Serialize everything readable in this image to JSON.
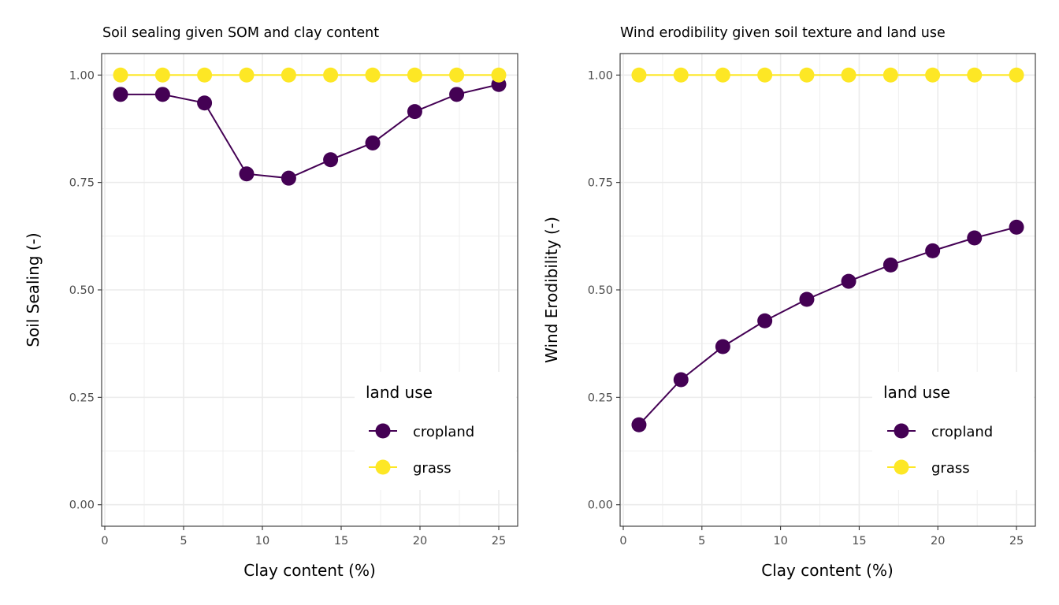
{
  "colors": {
    "cropland": "#440154",
    "grass": "#FDE725"
  },
  "chart_data": [
    {
      "type": "line",
      "title": "Soil sealing given SOM and clay content",
      "xlabel": "Clay content (%)",
      "ylabel": "Soil Sealing (-)",
      "xlim": [
        -0.2,
        26.2
      ],
      "ylim": [
        -0.05,
        1.05
      ],
      "xticks": [
        0,
        5,
        10,
        15,
        20,
        25
      ],
      "xtick_labels": [
        "0",
        "5",
        "10",
        "15",
        "20",
        "25"
      ],
      "yticks": [
        0,
        0.25,
        0.5,
        0.75,
        1.0
      ],
      "ytick_labels": [
        "0.00",
        "0.25",
        "0.50",
        "0.75",
        "1.00"
      ],
      "grid": true,
      "legend": {
        "title": "land use",
        "position": "bottom-right"
      },
      "x": [
        1,
        3.67,
        6.33,
        9,
        11.67,
        14.33,
        17,
        19.67,
        22.33,
        25
      ],
      "series": [
        {
          "name": "cropland",
          "color": "#440154",
          "values": [
            0.955,
            0.955,
            0.935,
            0.77,
            0.76,
            0.803,
            0.842,
            0.915,
            0.955,
            0.978
          ]
        },
        {
          "name": "grass",
          "color": "#FDE725",
          "values": [
            1,
            1,
            1,
            1,
            1,
            1,
            1,
            1,
            1,
            1
          ]
        }
      ]
    },
    {
      "type": "line",
      "title": "Wind erodibility given soil texture and land use",
      "xlabel": "Clay content (%)",
      "ylabel": "Wind Erodibility (-)",
      "xlim": [
        -0.2,
        26.2
      ],
      "ylim": [
        -0.05,
        1.05
      ],
      "xticks": [
        0,
        5,
        10,
        15,
        20,
        25
      ],
      "xtick_labels": [
        "0",
        "5",
        "10",
        "15",
        "20",
        "25"
      ],
      "yticks": [
        0,
        0.25,
        0.5,
        0.75,
        1.0
      ],
      "ytick_labels": [
        "0.00",
        "0.25",
        "0.50",
        "0.75",
        "1.00"
      ],
      "grid": true,
      "legend": {
        "title": "land use",
        "position": "bottom-right"
      },
      "x": [
        1,
        3.67,
        6.33,
        9,
        11.67,
        14.33,
        17,
        19.67,
        22.33,
        25
      ],
      "series": [
        {
          "name": "cropland",
          "color": "#440154",
          "values": [
            0.186,
            0.291,
            0.368,
            0.428,
            0.478,
            0.52,
            0.558,
            0.591,
            0.621,
            0.646
          ]
        },
        {
          "name": "grass",
          "color": "#FDE725",
          "values": [
            1,
            1,
            1,
            1,
            1,
            1,
            1,
            1,
            1,
            1
          ]
        }
      ]
    }
  ]
}
